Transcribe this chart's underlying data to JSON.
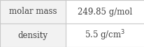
{
  "rows": [
    {
      "label": "molar mass",
      "value": "249.85 g/mol"
    },
    {
      "label": "density",
      "value": "5.5 g/cm³"
    }
  ],
  "background_color": "#ffffff",
  "left_cell_bg": "#f2f2f2",
  "border_color": "#c8c8c8",
  "label_fontsize": 8.5,
  "value_fontsize": 8.5,
  "font_color": "#404040",
  "col_split": 0.455
}
